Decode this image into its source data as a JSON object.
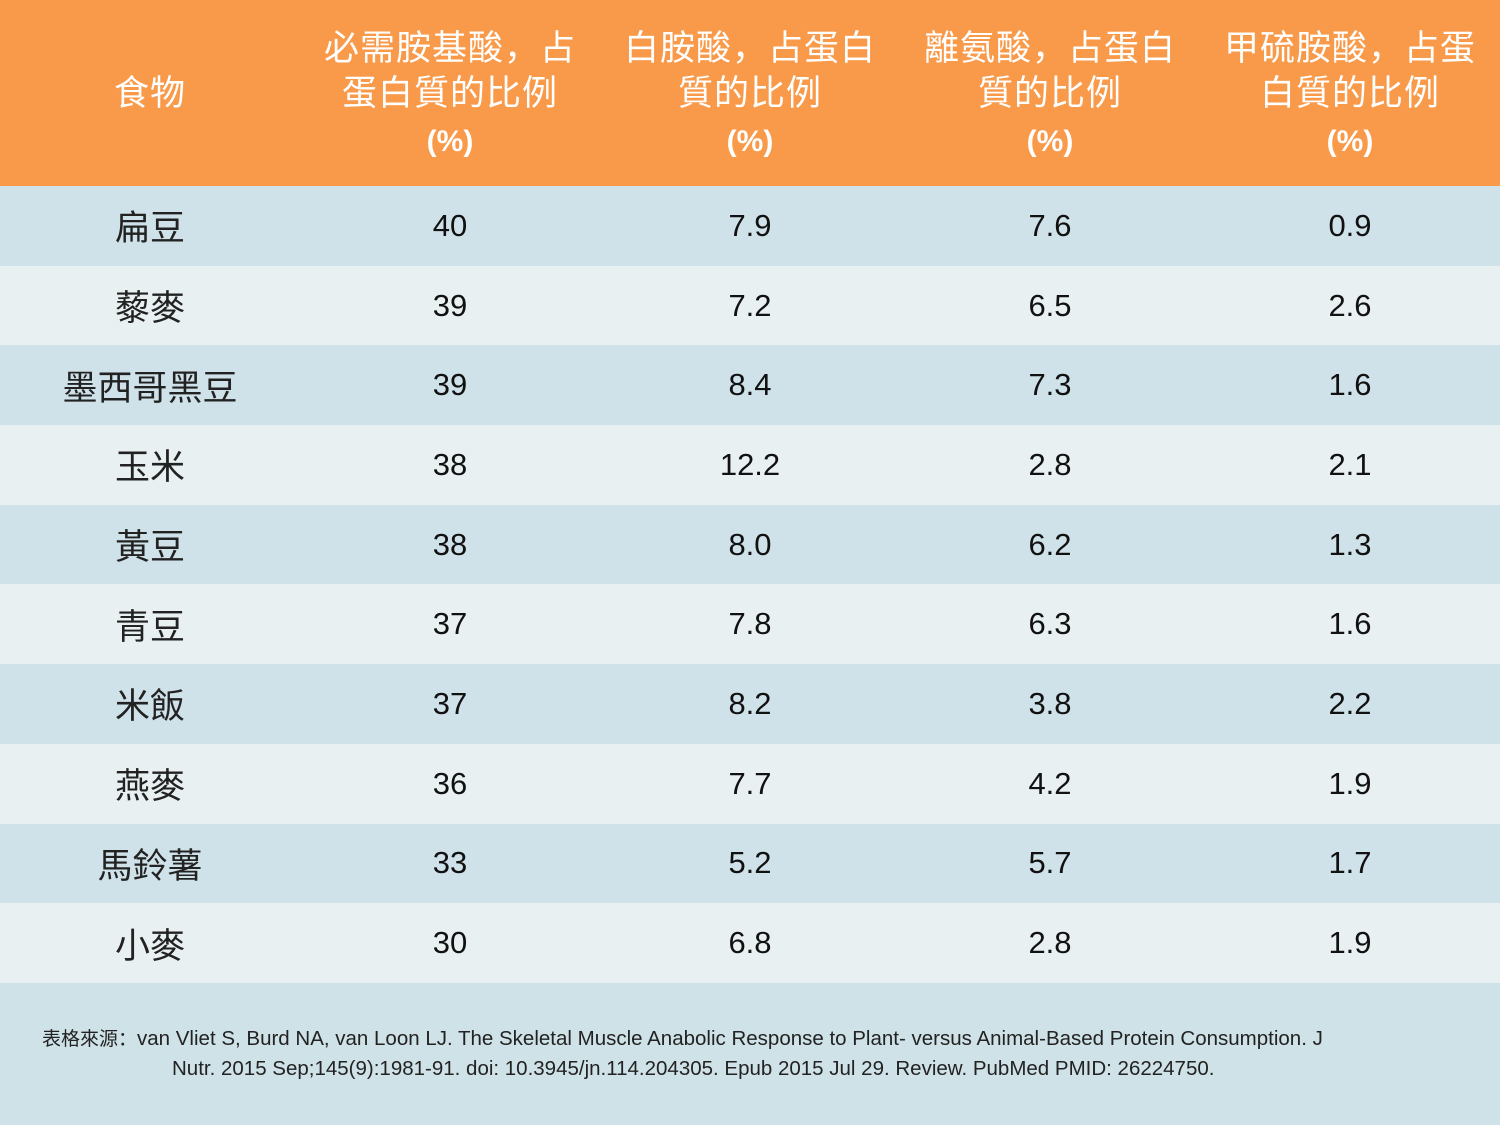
{
  "header": {
    "columns": [
      {
        "title": "食物",
        "unit": ""
      },
      {
        "title": "必需胺基酸，占\n蛋白質的比例",
        "unit": "(%)"
      },
      {
        "title": "白胺酸，占蛋白\n質的比例",
        "unit": "(%)"
      },
      {
        "title": "離氨酸，占蛋白\n質的比例",
        "unit": "(%)"
      },
      {
        "title": "甲硫胺酸，占蛋\n白質的比例",
        "unit": "(%)"
      }
    ]
  },
  "rows": [
    {
      "food": "扁豆",
      "essential": "40",
      "leucine": "7.9",
      "lysine": "7.6",
      "methionine": "0.9"
    },
    {
      "food": "藜麥",
      "essential": "39",
      "leucine": "7.2",
      "lysine": "6.5",
      "methionine": "2.6"
    },
    {
      "food": "墨西哥黑豆",
      "essential": "39",
      "leucine": "8.4",
      "lysine": "7.3",
      "methionine": "1.6"
    },
    {
      "food": "玉米",
      "essential": "38",
      "leucine": "12.2",
      "lysine": "2.8",
      "methionine": "2.1"
    },
    {
      "food": "黃豆",
      "essential": "38",
      "leucine": "8.0",
      "lysine": "6.2",
      "methionine": "1.3"
    },
    {
      "food": "青豆",
      "essential": "37",
      "leucine": "7.8",
      "lysine": "6.3",
      "methionine": "1.6"
    },
    {
      "food": "米飯",
      "essential": "37",
      "leucine": "8.2",
      "lysine": "3.8",
      "methionine": "2.2"
    },
    {
      "food": "燕麥",
      "essential": "36",
      "leucine": "7.7",
      "lysine": "4.2",
      "methionine": "1.9"
    },
    {
      "food": "馬鈴薯",
      "essential": "33",
      "leucine": "5.2",
      "lysine": "5.7",
      "methionine": "1.7"
    },
    {
      "food": "小麥",
      "essential": "30",
      "leucine": "6.8",
      "lysine": "2.8",
      "methionine": "1.9"
    }
  ],
  "footer": {
    "label": "表格來源：",
    "line1": "van Vliet S, Burd NA, van Loon LJ. The Skeletal Muscle Anabolic Response to Plant- versus Animal-Based Protein Consumption. J",
    "line2": "Nutr. 2015 Sep;145(9):1981-91. doi: 10.3945/jn.114.204305. Epub 2015 Jul 29. Review. PubMed PMID: 26224750."
  },
  "colors": {
    "header_bg": "#f89a4a",
    "row_dark": "#d0e2e9",
    "row_light": "#e8f0f2"
  }
}
